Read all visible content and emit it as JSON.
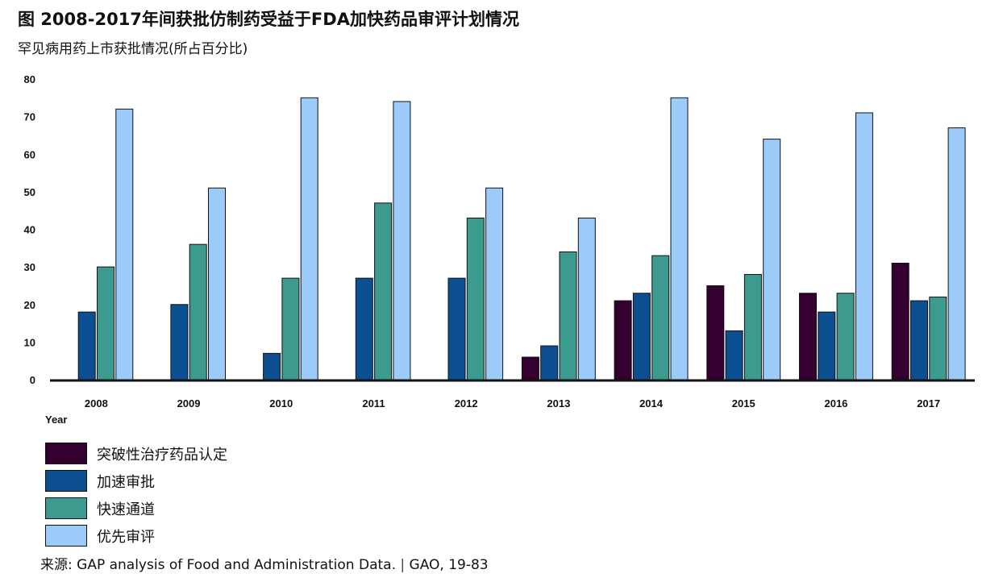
{
  "header": {
    "title": "图 2008-2017年间获批仿制药受益于FDA加快药品审评计划情况",
    "subtitle": "罕见病用药上市获批情况(所占百分比)"
  },
  "source": {
    "label": "来源:",
    "text": "GAP analysis of Food and Administration Data.",
    "separator": "|",
    "ref": "GAO, 19-83"
  },
  "chart_data": {
    "type": "bar",
    "title": "",
    "xlabel": "Year",
    "ylabel": "",
    "ylim": [
      0,
      80
    ],
    "yticks": [
      0,
      10,
      20,
      30,
      40,
      50,
      60,
      70,
      80
    ],
    "grid": false,
    "legend_position": "bottom-left",
    "categories": [
      "2008",
      "2009",
      "2010",
      "2011",
      "2012",
      "2013",
      "2014",
      "2015",
      "2016",
      "2017"
    ],
    "series": [
      {
        "name": "突破性治疗药品认定",
        "color": "#33002f",
        "values": [
          0,
          0,
          0,
          0,
          0,
          6,
          21,
          25,
          23,
          31
        ]
      },
      {
        "name": "加速审批",
        "color": "#0b4f91",
        "values": [
          18,
          20,
          7,
          27,
          27,
          9,
          23,
          13,
          18,
          21
        ]
      },
      {
        "name": "快速通道",
        "color": "#3d9a8f",
        "values": [
          30,
          36,
          27,
          47,
          43,
          34,
          33,
          28,
          23,
          22
        ]
      },
      {
        "name": "优先审评",
        "color": "#9ccbfa",
        "values": [
          72,
          51,
          75,
          74,
          51,
          43,
          75,
          64,
          71,
          67
        ]
      }
    ]
  }
}
